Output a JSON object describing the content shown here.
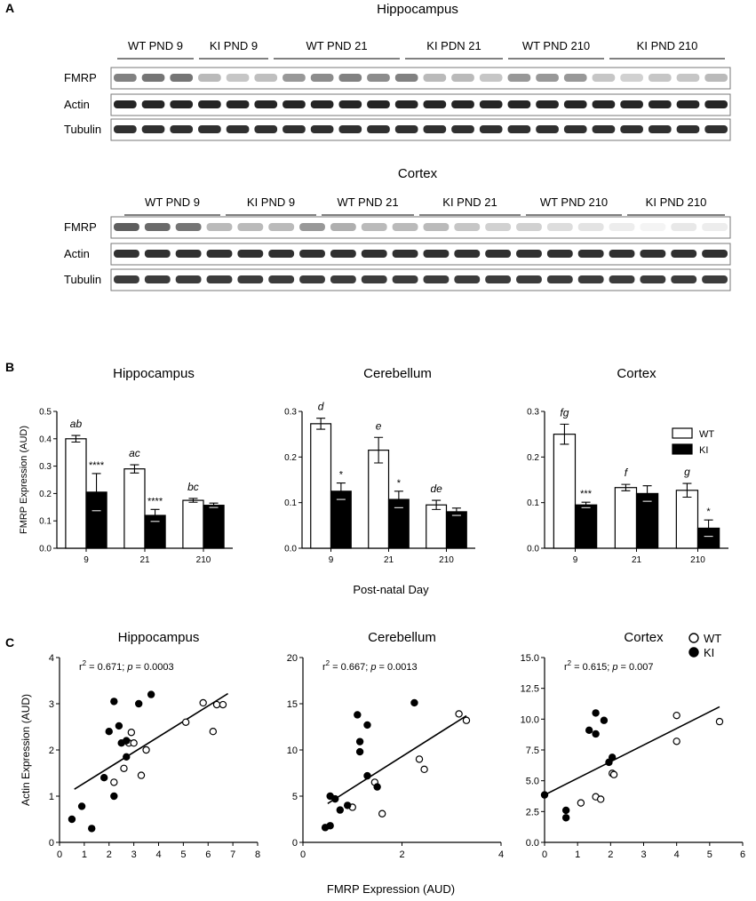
{
  "panel_a": {
    "letter": "A",
    "hippocampus": {
      "title": "Hippocampus",
      "groups": [
        "WT PND 9",
        "KI PND 9",
        "WT PND 21",
        "KI PDN 21",
        "WT PND 210",
        "KI PND 210"
      ],
      "rows": [
        "FMRP",
        "Actin",
        "Tubulin"
      ]
    },
    "cortex": {
      "title": "Cortex",
      "groups": [
        "WT PND 9",
        "KI PND 9",
        "WT PND 21",
        "KI PND 21",
        "WT PND 210",
        "KI PND 210"
      ],
      "rows": [
        "FMRP",
        "Actin",
        "Tubulin"
      ]
    }
  },
  "panel_b": {
    "letter": "B",
    "xlabel_shared": "Post-natal Day",
    "legend": [
      "WT",
      "KI"
    ]
  },
  "panel_c": {
    "letter": "C",
    "xlabel_shared": "FMRP Expression (AUD)",
    "legend": [
      "WT",
      "KI"
    ]
  },
  "chart_data": [
    {
      "type": "bar",
      "title": "Hippocampus",
      "ylabel": "FMRP Expression (AUD)",
      "xlabel": "Post-natal Day",
      "categories": [
        "9",
        "21",
        "210"
      ],
      "ylim": [
        0,
        0.5
      ],
      "yticks": [
        "0.0",
        "0.1",
        "0.2",
        "0.3",
        "0.4",
        "0.5"
      ],
      "series": [
        {
          "name": "WT",
          "values": [
            0.4,
            0.29,
            0.175
          ],
          "errors": [
            0.012,
            0.015,
            0.007
          ]
        },
        {
          "name": "KI",
          "values": [
            0.205,
            0.12,
            0.157
          ],
          "errors": [
            0.068,
            0.022,
            0.008
          ]
        }
      ],
      "wt_labels": [
        "ab",
        "ac",
        "bc"
      ],
      "ki_labels": [
        "****",
        "****",
        ""
      ]
    },
    {
      "type": "bar",
      "title": "Cerebellum",
      "ylabel": "",
      "xlabel": "Post-natal Day",
      "categories": [
        "9",
        "21",
        "210"
      ],
      "ylim": [
        0,
        0.3
      ],
      "yticks": [
        "0.0",
        "0.1",
        "0.2",
        "0.3"
      ],
      "series": [
        {
          "name": "WT",
          "values": [
            0.273,
            0.215,
            0.095
          ],
          "errors": [
            0.012,
            0.028,
            0.01
          ]
        },
        {
          "name": "KI",
          "values": [
            0.125,
            0.107,
            0.08
          ],
          "errors": [
            0.018,
            0.018,
            0.008
          ]
        }
      ],
      "wt_labels": [
        "d",
        "e",
        "de"
      ],
      "ki_labels": [
        "*",
        "*",
        ""
      ]
    },
    {
      "type": "bar",
      "title": "Cortex",
      "ylabel": "",
      "xlabel": "Post-natal Day",
      "categories": [
        "9",
        "21",
        "210"
      ],
      "ylim": [
        0,
        0.3
      ],
      "yticks": [
        "0.0",
        "0.1",
        "0.2",
        "0.3"
      ],
      "series": [
        {
          "name": "WT",
          "values": [
            0.25,
            0.133,
            0.127
          ],
          "errors": [
            0.022,
            0.007,
            0.015
          ]
        },
        {
          "name": "KI",
          "values": [
            0.095,
            0.12,
            0.044
          ],
          "errors": [
            0.006,
            0.017,
            0.018
          ]
        }
      ],
      "wt_labels": [
        "fg",
        "f",
        "g"
      ],
      "ki_labels": [
        "***",
        "",
        "*"
      ],
      "legend": [
        "WT",
        "KI"
      ]
    },
    {
      "type": "scatter",
      "title": "Hippocampus",
      "ylabel": "Actin Expression (AUD)",
      "xlabel": "FMRP Expression (AUD)",
      "xlim": [
        0,
        8
      ],
      "ylim": [
        0,
        4
      ],
      "xticks": [
        "0",
        "1",
        "2",
        "3",
        "4",
        "5",
        "6",
        "7",
        "8"
      ],
      "yticks": [
        "0",
        "1",
        "2",
        "3",
        "4"
      ],
      "annotation": {
        "r2_label": "r",
        "r2_value": "0.671",
        "p_label": "p",
        "p_value": "0.0003"
      },
      "fit_line": [
        [
          0.6,
          1.15
        ],
        [
          6.8,
          3.22
        ]
      ],
      "series": [
        {
          "name": "WT",
          "points": [
            [
              2.2,
              1.3
            ],
            [
              2.6,
              1.6
            ],
            [
              2.8,
              2.15
            ],
            [
              2.9,
              2.38
            ],
            [
              3.0,
              2.15
            ],
            [
              3.3,
              1.45
            ],
            [
              3.5,
              2.0
            ],
            [
              5.1,
              2.6
            ],
            [
              5.8,
              3.02
            ],
            [
              6.2,
              2.4
            ],
            [
              6.35,
              2.98
            ],
            [
              6.6,
              2.98
            ]
          ]
        },
        {
          "name": "KI",
          "points": [
            [
              0.5,
              0.5
            ],
            [
              0.9,
              0.78
            ],
            [
              1.3,
              0.3
            ],
            [
              1.8,
              1.4
            ],
            [
              2.0,
              2.4
            ],
            [
              2.2,
              3.05
            ],
            [
              2.2,
              1.0
            ],
            [
              2.4,
              2.52
            ],
            [
              2.5,
              2.15
            ],
            [
              2.7,
              2.2
            ],
            [
              2.7,
              1.85
            ],
            [
              3.2,
              3.0
            ],
            [
              3.7,
              3.2
            ]
          ]
        }
      ]
    },
    {
      "type": "scatter",
      "title": "Cerebellum",
      "ylabel": "",
      "xlabel": "FMRP Expression (AUD)",
      "xlim": [
        0,
        4
      ],
      "ylim": [
        0,
        20
      ],
      "xticks": [
        "0",
        "2",
        "4"
      ],
      "yticks": [
        "0",
        "5",
        "10",
        "15",
        "20"
      ],
      "annotation": {
        "r2_label": "r",
        "r2_value": "0.667",
        "p_label": "p",
        "p_value": "0.0013"
      },
      "fit_line": [
        [
          0.5,
          4.2
        ],
        [
          3.3,
          13.7
        ]
      ],
      "series": [
        {
          "name": "WT",
          "points": [
            [
              1.0,
              3.8
            ],
            [
              1.45,
              6.5
            ],
            [
              1.6,
              3.1
            ],
            [
              2.35,
              9.0
            ],
            [
              2.45,
              7.9
            ],
            [
              3.15,
              13.9
            ],
            [
              3.3,
              13.2
            ]
          ]
        },
        {
          "name": "KI",
          "points": [
            [
              0.45,
              1.6
            ],
            [
              0.55,
              1.8
            ],
            [
              0.55,
              5.0
            ],
            [
              0.65,
              4.7
            ],
            [
              0.75,
              3.5
            ],
            [
              0.9,
              4.0
            ],
            [
              1.1,
              13.8
            ],
            [
              1.15,
              10.9
            ],
            [
              1.15,
              9.8
            ],
            [
              1.3,
              7.2
            ],
            [
              1.3,
              12.7
            ],
            [
              1.5,
              6.0
            ],
            [
              2.25,
              15.1
            ]
          ]
        }
      ]
    },
    {
      "type": "scatter",
      "title": "Cortex",
      "ylabel": "",
      "xlabel": "FMRP Expression (AUD)",
      "xlim": [
        0,
        6
      ],
      "ylim": [
        0,
        15
      ],
      "xticks": [
        "0",
        "1",
        "2",
        "3",
        "4",
        "5",
        "6"
      ],
      "yticks": [
        "0.0",
        "2.5",
        "5.0",
        "7.5",
        "10.0",
        "12.5",
        "15.0"
      ],
      "annotation": {
        "r2_label": "r",
        "r2_value": "0.615",
        "p_label": "p",
        "p_value": "0.007"
      },
      "fit_line": [
        [
          0,
          3.85
        ],
        [
          5.3,
          11.0
        ]
      ],
      "series": [
        {
          "name": "WT",
          "points": [
            [
              1.1,
              3.2
            ],
            [
              1.55,
              3.7
            ],
            [
              1.7,
              3.5
            ],
            [
              2.05,
              5.6
            ],
            [
              2.1,
              5.5
            ],
            [
              4.0,
              10.3
            ],
            [
              4.0,
              8.2
            ],
            [
              5.3,
              9.8
            ]
          ]
        },
        {
          "name": "KI",
          "points": [
            [
              0,
              3.85
            ],
            [
              0.65,
              2.0
            ],
            [
              0.65,
              2.6
            ],
            [
              1.35,
              9.1
            ],
            [
              1.55,
              10.5
            ],
            [
              1.55,
              8.8
            ],
            [
              1.8,
              9.9
            ],
            [
              1.95,
              6.5
            ],
            [
              2.05,
              6.9
            ]
          ]
        }
      ],
      "legend": [
        "WT",
        "KI"
      ]
    }
  ]
}
